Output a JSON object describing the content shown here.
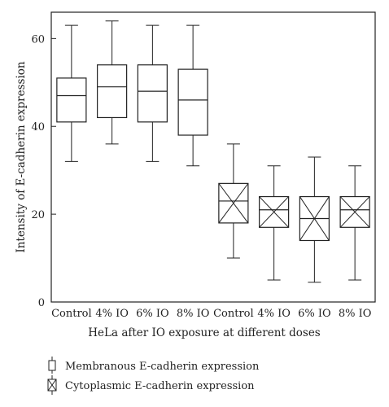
{
  "chart_data": {
    "type": "boxplot",
    "title": "",
    "xlabel": "HeLa after IO exposure at different doses",
    "ylabel": "Intensity of E-cadherin expression",
    "ylim": [
      0,
      66
    ],
    "yticks": [
      0,
      20,
      40,
      60
    ],
    "grid": false,
    "legend_position": "bottom-left",
    "categories": [
      "Control",
      "4% IO",
      "6% IO",
      "8% IO",
      "Control",
      "4% IO",
      "6% IO",
      "8% IO"
    ],
    "series": [
      {
        "name": "Membranous E-cadherin expression",
        "marker": "plain-box",
        "boxes": [
          {
            "category": "Control",
            "min": 32,
            "q1": 41,
            "median": 47,
            "q3": 51,
            "max": 63
          },
          {
            "category": "4% IO",
            "min": 36,
            "q1": 42,
            "median": 49,
            "q3": 54,
            "max": 64
          },
          {
            "category": "6% IO",
            "min": 32,
            "q1": 41,
            "median": 48,
            "q3": 54,
            "max": 63
          },
          {
            "category": "8% IO",
            "min": 31,
            "q1": 38,
            "median": 46,
            "q3": 53,
            "max": 63
          }
        ]
      },
      {
        "name": "Cytoplasmic E-cadherin expression",
        "marker": "crossed-box",
        "boxes": [
          {
            "category": "Control",
            "min": 10,
            "q1": 18,
            "median": 23,
            "q3": 27,
            "max": 36
          },
          {
            "category": "4% IO",
            "min": 5,
            "q1": 17,
            "median": 21,
            "q3": 24,
            "max": 31
          },
          {
            "category": "6% IO",
            "min": 4.5,
            "q1": 14,
            "median": 19,
            "q3": 24,
            "max": 33
          },
          {
            "category": "8% IO",
            "min": 5,
            "q1": 17,
            "median": 21,
            "q3": 24,
            "max": 31
          }
        ]
      }
    ]
  },
  "legend": {
    "items": [
      {
        "label": "Membranous E-cadherin expression",
        "icon": "plain-box-icon"
      },
      {
        "label": "Cytoplasmic E-cadherin expression",
        "icon": "crossed-box-icon"
      }
    ]
  }
}
